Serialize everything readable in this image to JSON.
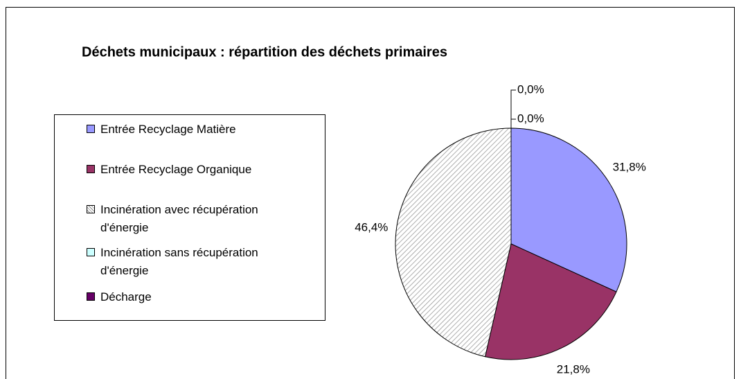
{
  "chart_data": {
    "type": "pie",
    "title": "Déchets municipaux : répartition des déchets primaires",
    "categories": [
      "Entrée Recyclage Matière",
      "Entrée Recyclage Organique",
      "Incinération avec récupération d'énergie",
      "Incinération sans récupération d'énergie",
      "Décharge"
    ],
    "values": [
      31.8,
      21.8,
      46.4,
      0.0,
      0.0
    ],
    "value_labels": [
      "31,8%",
      "21,8%",
      "46,4%",
      "0,0%",
      "0,0%"
    ],
    "colors": [
      "#9999ff",
      "#993366",
      "url(#hatch)",
      "#ccffff",
      "#660066"
    ],
    "legend": "left"
  }
}
